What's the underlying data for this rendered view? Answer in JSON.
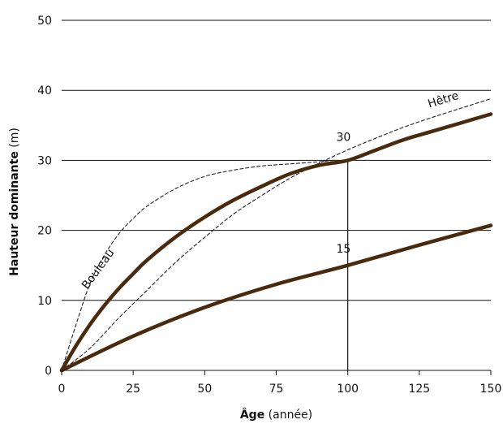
{
  "chart_data": {
    "type": "line",
    "xlabel_bold": "Âge",
    "xlabel_rest": " (année)",
    "ylabel_bold": "Hauteur dominante",
    "ylabel_rest": " (m)",
    "xlim": [
      0,
      150
    ],
    "ylim": [
      0,
      50
    ],
    "xticks": [
      0,
      25,
      50,
      75,
      100,
      125,
      150
    ],
    "yticks": [
      0,
      10,
      20,
      30,
      40,
      50
    ],
    "grid": "horizontal",
    "colors": {
      "site_curve": "#4a2a0c",
      "species_curve": "#222222",
      "grid": "#111111"
    },
    "series": [
      {
        "name": "30",
        "style": "solid",
        "x": [
          0,
          5,
          10,
          15,
          20,
          25,
          30,
          40,
          50,
          60,
          70,
          80,
          90,
          100,
          110,
          120,
          130,
          140,
          150
        ],
        "y": [
          0,
          3.5,
          6.6,
          9.3,
          11.7,
          13.8,
          15.8,
          19.1,
          21.9,
          24.3,
          26.3,
          28.1,
          29.3,
          30.0,
          31.5,
          33.0,
          34.2,
          35.4,
          36.6
        ]
      },
      {
        "name": "15",
        "style": "solid",
        "x": [
          0,
          25,
          50,
          75,
          100,
          125,
          150
        ],
        "y": [
          0,
          4.9,
          9.0,
          12.3,
          15.0,
          17.9,
          20.7
        ]
      },
      {
        "name": "Bouleau",
        "style": "dashed",
        "x": [
          0,
          5,
          10,
          15,
          20,
          25,
          30,
          40,
          50,
          60,
          70,
          80,
          90,
          95
        ],
        "y": [
          0,
          6.5,
          12.5,
          16.5,
          19.5,
          21.7,
          23.5,
          26.0,
          27.7,
          28.6,
          29.2,
          29.5,
          29.8,
          30.0
        ]
      },
      {
        "name": "Hêtre",
        "style": "dashed",
        "x": [
          0,
          10,
          20,
          30,
          40,
          50,
          60,
          70,
          80,
          90,
          100,
          110,
          120,
          130,
          140,
          150
        ],
        "y": [
          0,
          3.2,
          7.5,
          11.5,
          15.5,
          19.0,
          22.3,
          25.0,
          27.5,
          29.6,
          31.5,
          33.2,
          34.8,
          36.2,
          37.5,
          38.8
        ]
      }
    ],
    "reference_lines": [
      {
        "x": 100,
        "y": 30
      }
    ]
  }
}
